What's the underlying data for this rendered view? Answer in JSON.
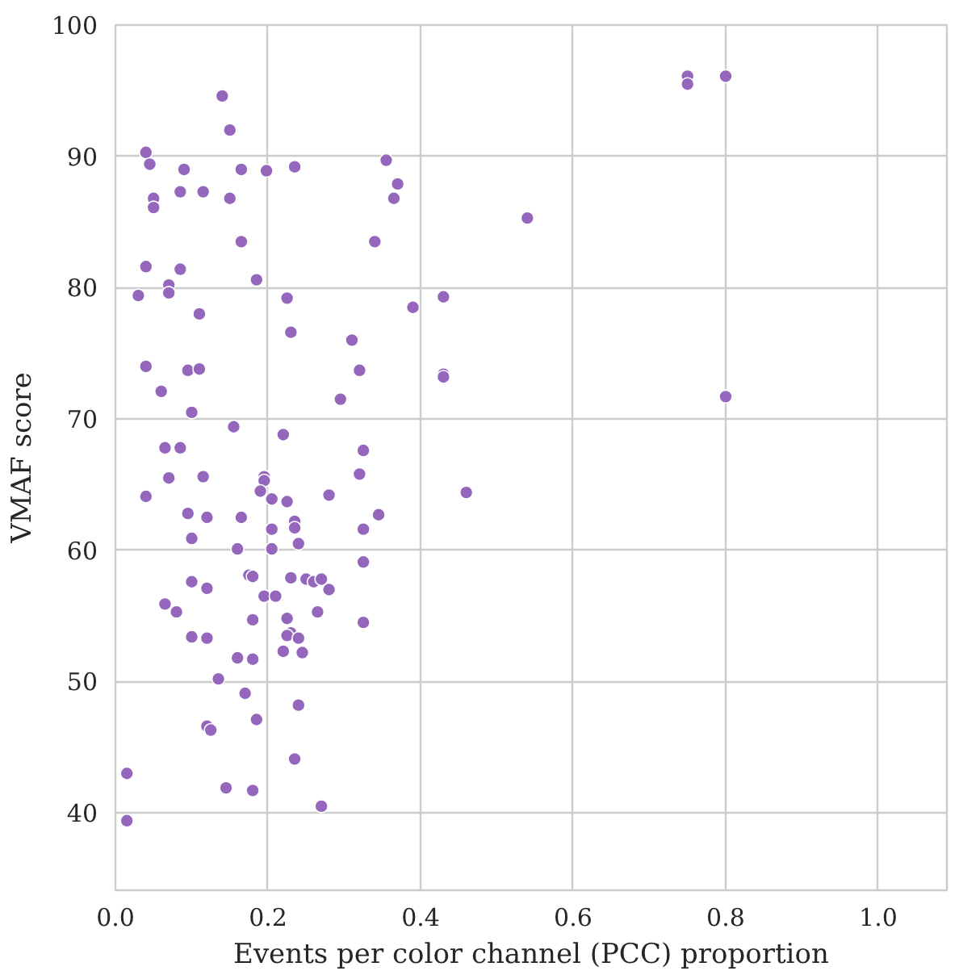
{
  "chart_data": {
    "type": "scatter",
    "xlabel": "Events per color channel (PCC) proportion",
    "ylabel": "VMAF score",
    "xlim": [
      0,
      1.09
    ],
    "ylim": [
      34.1,
      100
    ],
    "xticks": [
      {
        "value": 0,
        "label": "0.0"
      },
      0.2,
      0.4,
      0.6,
      0.8,
      {
        "value": 1,
        "label": "1.0"
      }
    ],
    "yticks": [
      40,
      50,
      60,
      70,
      80,
      90,
      100
    ],
    "grid": true,
    "marker": "circle",
    "series": [
      {
        "color": "#9467bd",
        "x": [
          0.75,
          0.75,
          0.8,
          0.14,
          0.15,
          0.04,
          0.045,
          0.09,
          0.165,
          0.198,
          0.235,
          0.355,
          0.085,
          0.115,
          0.05,
          0.05,
          0.15,
          0.37,
          0.365,
          0.54,
          0.165,
          0.34,
          0.04,
          0.085,
          0.07,
          0.07,
          0.03,
          0.185,
          0.225,
          0.43,
          0.39,
          0.11,
          0.23,
          0.31,
          0.04,
          0.095,
          0.11,
          0.32,
          0.43,
          0.43,
          0.06,
          0.295,
          0.8,
          0.1,
          0.155,
          0.22,
          0.065,
          0.085,
          0.325,
          0.07,
          0.115,
          0.195,
          0.195,
          0.19,
          0.04,
          0.46,
          0.28,
          0.205,
          0.225,
          0.32,
          0.095,
          0.12,
          0.165,
          0.235,
          0.235,
          0.345,
          0.205,
          0.325,
          0.1,
          0.24,
          0.16,
          0.205,
          0.325,
          0.175,
          0.18,
          0.23,
          0.25,
          0.26,
          0.27,
          0.1,
          0.12,
          0.28,
          0.195,
          0.21,
          0.065,
          0.08,
          0.265,
          0.18,
          0.225,
          0.325,
          0.23,
          0.225,
          0.24,
          0.1,
          0.12,
          0.22,
          0.245,
          0.16,
          0.18,
          0.135,
          0.17,
          0.24,
          0.185,
          0.12,
          0.125,
          0.235,
          0.015,
          0.145,
          0.18,
          0.27,
          0.015
        ],
        "values": [
          96.1,
          95.5,
          96.1,
          94.6,
          92.0,
          90.3,
          89.4,
          89.0,
          89.0,
          88.9,
          89.2,
          89.7,
          87.3,
          87.3,
          86.8,
          86.1,
          86.8,
          87.9,
          86.8,
          85.3,
          83.5,
          83.5,
          81.6,
          81.4,
          80.2,
          79.6,
          79.4,
          80.6,
          79.2,
          79.3,
          78.5,
          78.0,
          76.6,
          76.0,
          74.0,
          73.7,
          73.8,
          73.7,
          73.4,
          73.2,
          72.1,
          71.5,
          71.7,
          70.5,
          69.4,
          68.8,
          67.8,
          67.8,
          67.6,
          65.5,
          65.6,
          65.6,
          65.3,
          64.5,
          64.1,
          64.4,
          64.2,
          63.9,
          63.7,
          65.8,
          62.8,
          62.5,
          62.5,
          62.2,
          61.7,
          62.7,
          61.6,
          61.6,
          60.9,
          60.5,
          60.1,
          60.1,
          59.1,
          58.1,
          58.0,
          57.9,
          57.8,
          57.6,
          57.8,
          57.6,
          57.1,
          57.0,
          56.5,
          56.5,
          55.9,
          55.3,
          55.3,
          54.7,
          54.8,
          54.5,
          53.7,
          53.5,
          53.3,
          53.4,
          53.3,
          52.3,
          52.2,
          51.8,
          51.7,
          50.2,
          49.1,
          48.2,
          47.1,
          46.6,
          46.3,
          44.1,
          43.0,
          41.9,
          41.7,
          40.5,
          39.4
        ]
      }
    ]
  }
}
